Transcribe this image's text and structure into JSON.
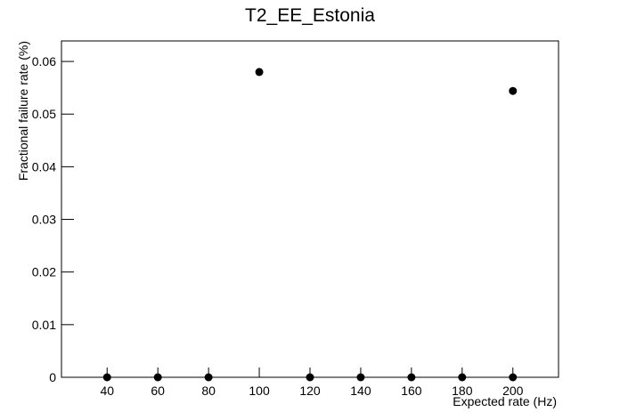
{
  "chart_data": {
    "type": "scatter",
    "title": "T2_EE_Estonia",
    "x_label": "Expected rate (Hz)",
    "y_label": "Fractional failure rate (%)",
    "x": [
      40,
      60,
      80,
      100,
      120,
      140,
      160,
      180,
      200,
      200
    ],
    "values": [
      0,
      0,
      0,
      0.058,
      0,
      0,
      0,
      0,
      0,
      0.0544
    ],
    "color": "#000000",
    "xlim": [
      22,
      218
    ],
    "xticks": [
      40,
      60,
      80,
      100,
      120,
      140,
      160,
      180,
      200
    ],
    "ylim": [
      0,
      0.0639
    ],
    "yticks": [
      0,
      0.01,
      0.02,
      0.03,
      0.04,
      0.05,
      0.06
    ]
  }
}
